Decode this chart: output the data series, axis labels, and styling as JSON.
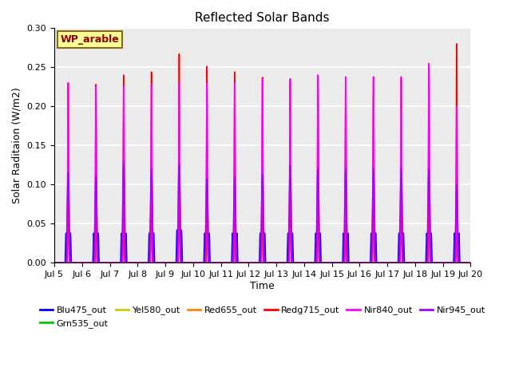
{
  "title": "Reflected Solar Bands",
  "xlabel": "Time",
  "ylabel": "Solar Raditaion (W/m2)",
  "annotation": "WP_arable",
  "annotation_color": "#8B0000",
  "annotation_bg": "#FFFF99",
  "annotation_border": "#8B6914",
  "ylim": [
    0.0,
    0.3
  ],
  "yticks": [
    0.0,
    0.05,
    0.1,
    0.15,
    0.2,
    0.25,
    0.3
  ],
  "n_days": 15,
  "start_day": 5,
  "bg_color": "#ebebeb",
  "grid_color": "white",
  "series": [
    {
      "name": "Blu475_out",
      "color": "#0000ff",
      "lw": 1.2
    },
    {
      "name": "Grn535_out",
      "color": "#00cc00",
      "lw": 1.2
    },
    {
      "name": "Yel580_out",
      "color": "#cccc00",
      "lw": 1.2
    },
    {
      "name": "Red655_out",
      "color": "#ff8800",
      "lw": 1.2
    },
    {
      "name": "Redg715_out",
      "color": "#ff0000",
      "lw": 1.2
    },
    {
      "name": "Nir840_out",
      "color": "#ff00ff",
      "lw": 1.2
    },
    {
      "name": "Nir945_out",
      "color": "#aa00ff",
      "lw": 1.2
    }
  ],
  "blu_peaks": [
    0.038,
    0.038,
    0.038,
    0.038,
    0.042,
    0.038,
    0.038,
    0.038,
    0.038,
    0.038,
    0.038,
    0.038,
    0.038,
    0.038,
    0.038
  ],
  "grn_peaks": [
    0.065,
    0.065,
    0.068,
    0.068,
    0.075,
    0.065,
    0.068,
    0.065,
    0.065,
    0.068,
    0.065,
    0.068,
    0.065,
    0.07,
    0.065
  ],
  "yel_peaks": [
    0.072,
    0.072,
    0.075,
    0.076,
    0.082,
    0.072,
    0.075,
    0.072,
    0.072,
    0.075,
    0.072,
    0.075,
    0.072,
    0.077,
    0.072
  ],
  "red_peaks": [
    0.08,
    0.08,
    0.083,
    0.084,
    0.092,
    0.08,
    0.083,
    0.08,
    0.08,
    0.083,
    0.08,
    0.083,
    0.08,
    0.085,
    0.08
  ],
  "redg_peaks": [
    0.23,
    0.228,
    0.24,
    0.244,
    0.267,
    0.251,
    0.244,
    0.237,
    0.235,
    0.24,
    0.235,
    0.237,
    0.235,
    0.249,
    0.28
  ],
  "nir840_peaks": [
    0.23,
    0.225,
    0.225,
    0.228,
    0.23,
    0.23,
    0.23,
    0.235,
    0.235,
    0.24,
    0.238,
    0.238,
    0.238,
    0.255,
    0.2
  ],
  "nir945_peaks": [
    0.115,
    0.11,
    0.128,
    0.12,
    0.126,
    0.107,
    0.11,
    0.113,
    0.125,
    0.12,
    0.12,
    0.12,
    0.12,
    0.12,
    0.1
  ]
}
